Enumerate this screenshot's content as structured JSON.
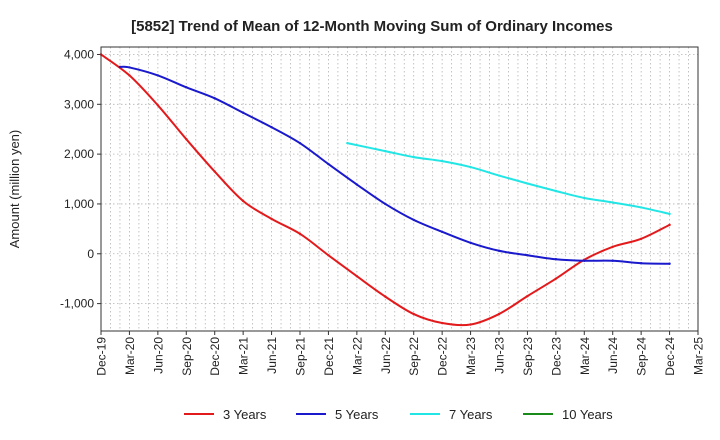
{
  "chart_data": {
    "type": "line",
    "title": "[5852]  Trend of Mean of 12-Month Moving Sum of Ordinary Incomes",
    "xlabel": "",
    "ylabel": "Amount (million yen)",
    "ylim": [
      -1550,
      4150
    ],
    "yticks": [
      4000,
      3000,
      2000,
      1000,
      0,
      -1000
    ],
    "ytick_labels": [
      "4,000",
      "3,000",
      "2,000",
      "1,000",
      "0",
      "-1,000"
    ],
    "x_tick_labels": [
      "Dec-19",
      "Mar-20",
      "Jun-20",
      "Sep-20",
      "Dec-20",
      "Mar-21",
      "Jun-21",
      "Sep-21",
      "Dec-21",
      "Mar-22",
      "Jun-22",
      "Sep-22",
      "Dec-22",
      "Mar-23",
      "Jun-23",
      "Sep-23",
      "Dec-23",
      "Mar-24",
      "Jun-24",
      "Sep-24",
      "Dec-24",
      "Mar-25"
    ],
    "x_range_months": [
      0,
      63
    ],
    "grid": true,
    "legend_position": "bottom",
    "series": [
      {
        "name": "3 Years",
        "color": "#e31a1c",
        "x_months": [
          0,
          3,
          6,
          9,
          12,
          15,
          18,
          21,
          24,
          27,
          30,
          33,
          36,
          39,
          42,
          45,
          48,
          51,
          54,
          57,
          60
        ],
        "values": [
          4000,
          3580,
          2980,
          2300,
          1650,
          1060,
          700,
          400,
          -30,
          -450,
          -860,
          -1210,
          -1390,
          -1420,
          -1210,
          -850,
          -500,
          -120,
          140,
          300,
          580
        ]
      },
      {
        "name": "5 Years",
        "color": "#1a1acc",
        "x_months": [
          2,
          3,
          6,
          9,
          12,
          15,
          18,
          21,
          24,
          27,
          30,
          33,
          36,
          39,
          42,
          45,
          48,
          51,
          54,
          57,
          60
        ],
        "values": [
          3750,
          3740,
          3580,
          3340,
          3120,
          2830,
          2540,
          2220,
          1800,
          1390,
          1000,
          680,
          440,
          220,
          60,
          -30,
          -110,
          -140,
          -140,
          -190,
          -200
        ]
      },
      {
        "name": "7 Years",
        "color": "#22e5e5",
        "x_months": [
          26,
          30,
          33,
          36,
          39,
          42,
          45,
          48,
          51,
          54,
          57,
          60
        ],
        "values": [
          2220,
          2060,
          1940,
          1860,
          1740,
          1570,
          1410,
          1260,
          1120,
          1030,
          930,
          800
        ]
      },
      {
        "name": "10 Years",
        "color": "#1a8a1a",
        "x_months": [],
        "values": []
      }
    ]
  }
}
